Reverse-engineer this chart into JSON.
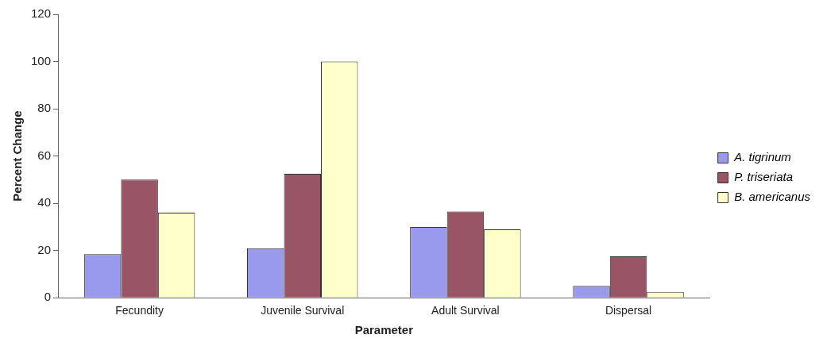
{
  "chart_data": {
    "type": "bar",
    "xlabel": "Parameter",
    "ylabel": "Percent Change",
    "categories": [
      "Fecundity",
      "Juvenile Survival",
      "Adult Survival",
      "Dispersal"
    ],
    "series": [
      {
        "name": "A. tigrinum",
        "color": "#9999ee",
        "values": [
          18.5,
          21,
          30,
          5
        ]
      },
      {
        "name": "P. triseriata",
        "color": "#995566",
        "values": [
          50,
          52.5,
          36.5,
          17.5
        ]
      },
      {
        "name": "B. americanus",
        "color": "#ffffcc",
        "values": [
          36,
          100,
          29,
          2.5
        ]
      }
    ],
    "ylim": [
      0,
      120
    ],
    "yticks": [
      0,
      20,
      40,
      60,
      80,
      100,
      120
    ],
    "grid": false,
    "legend": "right"
  }
}
